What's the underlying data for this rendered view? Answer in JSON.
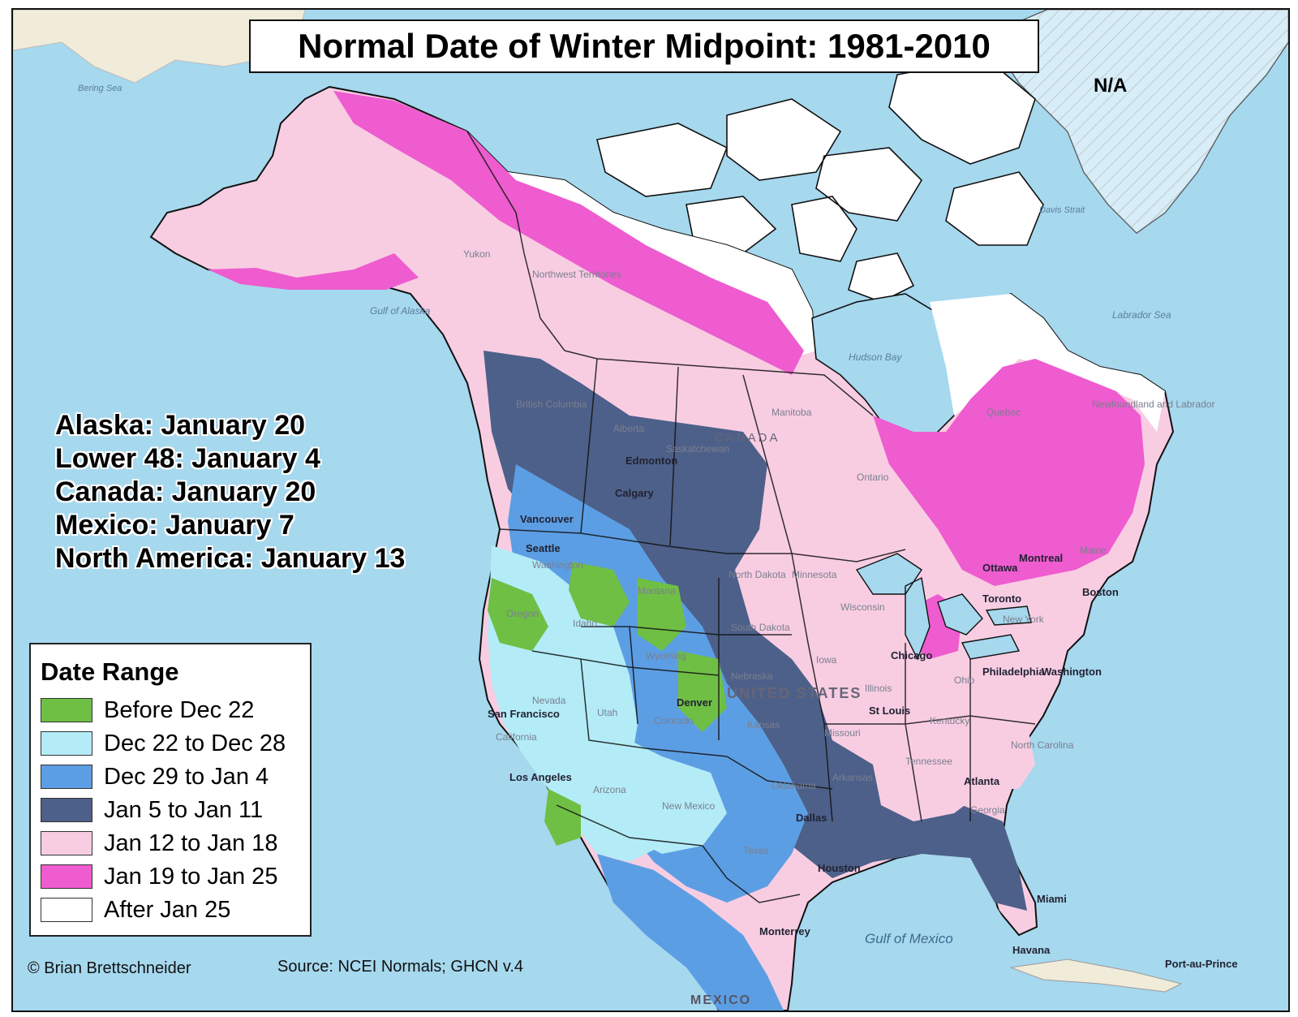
{
  "title": "Normal Date of Winter Midpoint: 1981-2010",
  "summary": [
    "Alaska: January 20",
    "Lower 48: January 4",
    "Canada: January 20",
    "Mexico: January 7",
    "North America: January 13"
  ],
  "legend": {
    "title": "Date Range",
    "items": [
      {
        "label": "Before Dec 22",
        "color": "#6fbf45"
      },
      {
        "label": "Dec 22 to Dec 28",
        "color": "#b3ecf7"
      },
      {
        "label": "Dec 29 to Jan 4",
        "color": "#5c9ee3"
      },
      {
        "label": "Jan 5 to Jan 11",
        "color": "#4d6089"
      },
      {
        "label": "Jan 12 to Jan 18",
        "color": "#f8cde2"
      },
      {
        "label": "Jan 19 to Jan 25",
        "color": "#ee5ccf"
      },
      {
        "label": "After Jan 25",
        "color": "#ffffff"
      }
    ]
  },
  "no_data_label": "N/A",
  "credit": "© Brian Brettschneider",
  "source": "Source: NCEI Normals; GHCN v.4",
  "map_labels": {
    "hudson_bay": "Hudson Bay",
    "gulf_alaska": "Gulf of Alaska",
    "bering": "Bering Sea",
    "labrador": "Labrador Sea",
    "davis": "Davis Strait",
    "gulf_mexico": "Gulf of Mexico",
    "canada": "CANADA",
    "united_states": "UNITED STATES",
    "mexico": "MEXICO",
    "cities": [
      "Edmonton",
      "Calgary",
      "Vancouver",
      "Seattle",
      "Denver",
      "St Louis",
      "Chicago",
      "Dallas",
      "Houston",
      "Atlanta",
      "Boston",
      "Philadelphia",
      "Washington",
      "Miami",
      "Havana",
      "Ottawa",
      "Montreal",
      "Toronto",
      "Los Angeles",
      "San Francisco",
      "Monterrey",
      "Port-au-Prince"
    ],
    "regions": [
      "Yukon",
      "Northwest Territories",
      "British Columbia",
      "Alberta",
      "Saskatchewan",
      "Manitoba",
      "Ontario",
      "Quebec",
      "Newfoundland and Labrador",
      "Washington",
      "Oregon",
      "Idaho",
      "Montana",
      "Wyoming",
      "Nevada",
      "Utah",
      "Colorado",
      "California",
      "Arizona",
      "New Mexico",
      "Texas",
      "Oklahoma",
      "Kansas",
      "Nebraska",
      "South Dakota",
      "North Dakota",
      "Minnesota",
      "Iowa",
      "Missouri",
      "Arkansas",
      "Wisconsin",
      "Illinois",
      "Ohio",
      "Kentucky",
      "Tennessee",
      "Georgia",
      "North Carolina",
      "New York",
      "Maine"
    ]
  }
}
